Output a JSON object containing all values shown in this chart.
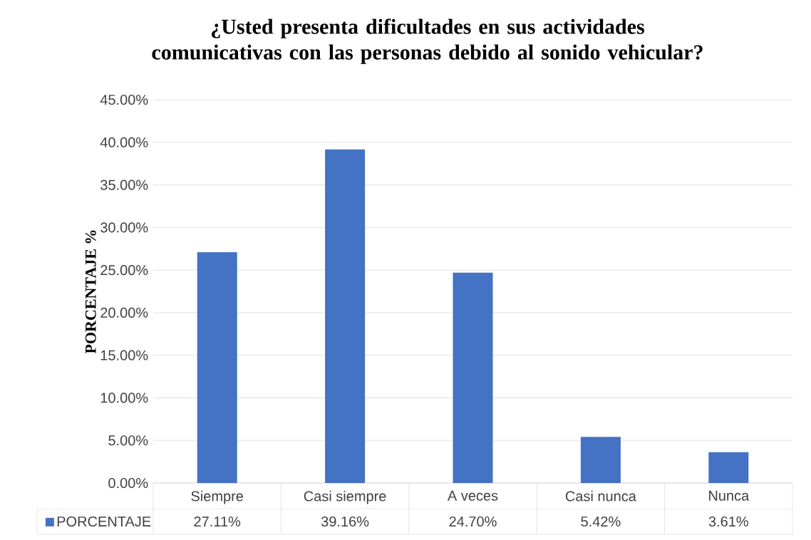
{
  "chart_data": {
    "type": "bar",
    "title": "¿Usted presenta dificultades en sus actividades comunicativas con las personas debido al sonido vehicular?",
    "ylabel": "PORCENTAJE %",
    "categories": [
      "Siempre",
      "Casi siempre",
      "A veces",
      "Casi nunca",
      "Nunca"
    ],
    "series": [
      {
        "name": "PORCENTAJE",
        "color": "#4472c4",
        "values": [
          27.11,
          39.16,
          24.7,
          5.42,
          3.61
        ],
        "value_labels": [
          "27.11%",
          "39.16%",
          "24.70%",
          "5.42%",
          "3.61%"
        ]
      }
    ],
    "ylim": [
      0,
      45
    ],
    "yticks": [
      {
        "value": 0,
        "label": "0.00%"
      },
      {
        "value": 5,
        "label": "5.00%"
      },
      {
        "value": 10,
        "label": "10.00%"
      },
      {
        "value": 15,
        "label": "15.00%"
      },
      {
        "value": 20,
        "label": "20.00%"
      },
      {
        "value": 25,
        "label": "25.00%"
      },
      {
        "value": 30,
        "label": "30.00%"
      },
      {
        "value": 35,
        "label": "35.00%"
      },
      {
        "value": 40,
        "label": "40.00%"
      },
      {
        "value": 45,
        "label": "45.00%"
      }
    ],
    "grid": "y",
    "legend": "bottom"
  }
}
